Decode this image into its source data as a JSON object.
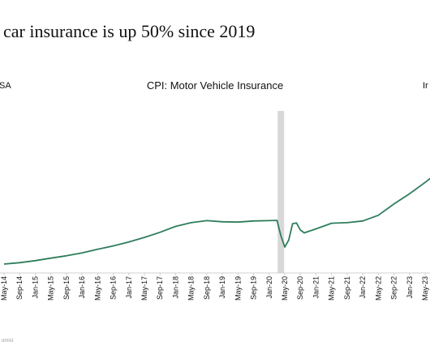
{
  "header": {
    "headline": "car insurance is up 50% since 2019",
    "left_label": "SA",
    "right_label": "Ir",
    "source": "omist"
  },
  "chart_data": {
    "type": "line",
    "title": "CPI: Motor Vehicle Insurance",
    "xlabel": "",
    "ylabel": "",
    "grid": false,
    "x_tick_labels": [
      "May-14",
      "Sep-14",
      "Jan-15",
      "May-15",
      "Sep-15",
      "Jan-16",
      "May-16",
      "Sep-16",
      "Jan-17",
      "May-17",
      "Sep-17",
      "Jan-18",
      "May-18",
      "Sep-18",
      "Jan-19",
      "May-19",
      "Sep-19",
      "Jan-20",
      "May-20",
      "Sep-20",
      "Jan-21",
      "May-21",
      "Sep-21",
      "Jan-22",
      "May-22",
      "Sep-22",
      "Jan-23",
      "May-23"
    ],
    "highlight_band": {
      "from": "Apr-20",
      "to": "Apr-20",
      "color": "#d8d8d8"
    },
    "colors": {
      "line": "#2e7d5b"
    },
    "series": [
      {
        "values": [
          {
            "x": "May-14",
            "y": 10.0
          },
          {
            "x": "Sep-14",
            "y": 11.2
          },
          {
            "x": "Jan-15",
            "y": 13.0
          },
          {
            "x": "May-15",
            "y": 15.2
          },
          {
            "x": "Sep-15",
            "y": 17.3
          },
          {
            "x": "Jan-16",
            "y": 19.8
          },
          {
            "x": "May-16",
            "y": 23.0
          },
          {
            "x": "Sep-16",
            "y": 26.0
          },
          {
            "x": "Jan-17",
            "y": 29.5
          },
          {
            "x": "May-17",
            "y": 33.5
          },
          {
            "x": "Sep-17",
            "y": 38.0
          },
          {
            "x": "Jan-18",
            "y": 43.2
          },
          {
            "x": "May-18",
            "y": 46.5
          },
          {
            "x": "Sep-18",
            "y": 48.3
          },
          {
            "x": "Jan-19",
            "y": 47.3
          },
          {
            "x": "May-19",
            "y": 47.0
          },
          {
            "x": "Sep-19",
            "y": 48.0
          },
          {
            "x": "Jan-20",
            "y": 48.3
          },
          {
            "x": "Mar-20",
            "y": 48.5
          },
          {
            "x": "Apr-20",
            "y": 35.0
          },
          {
            "x": "May-20",
            "y": 25.0
          },
          {
            "x": "Jun-20",
            "y": 31.0
          },
          {
            "x": "Jul-20",
            "y": 45.5
          },
          {
            "x": "Aug-20",
            "y": 46.2
          },
          {
            "x": "Sep-20",
            "y": 40.0
          },
          {
            "x": "Oct-20",
            "y": 37.5
          },
          {
            "x": "Jan-21",
            "y": 41.0
          },
          {
            "x": "May-21",
            "y": 46.0
          },
          {
            "x": "Sep-21",
            "y": 46.5
          },
          {
            "x": "Jan-22",
            "y": 48.0
          },
          {
            "x": "May-22",
            "y": 53.0
          },
          {
            "x": "Sep-22",
            "y": 63.0
          },
          {
            "x": "Jan-23",
            "y": 72.0
          },
          {
            "x": "May-23",
            "y": 82.0
          },
          {
            "x": "Aug-23",
            "y": 90.0
          }
        ]
      }
    ]
  }
}
